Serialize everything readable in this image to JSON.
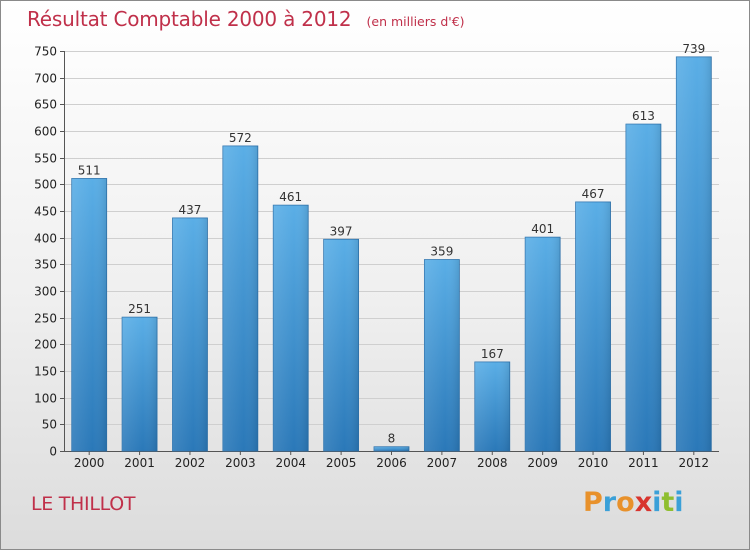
{
  "header": {
    "title": "Résultat Comptable 2000 à 2012",
    "unit": "(en milliers d'€)"
  },
  "footer": {
    "commune": "LE THILLOT",
    "brand_letters": [
      "P",
      "r",
      "o",
      "x",
      "i",
      "t",
      "i"
    ],
    "brand_colors": [
      "#e8912b",
      "#3aa0d8",
      "#e8912b",
      "#d8342e",
      "#3aa0d8",
      "#8fbe2f",
      "#3aa0d8"
    ]
  },
  "colors": {
    "title": "#c0304a",
    "bar_top": "#5aaee6",
    "bar_bottom": "#2a78b8",
    "grid": "#cfcfcf"
  },
  "chart_data": {
    "type": "bar",
    "title": "Résultat Comptable 2000 à 2012",
    "subtitle": "(en milliers d'€)",
    "xlabel": "",
    "ylabel": "",
    "categories": [
      "2000",
      "2001",
      "2002",
      "2003",
      "2004",
      "2005",
      "2006",
      "2007",
      "2008",
      "2009",
      "2010",
      "2011",
      "2012"
    ],
    "values": [
      511,
      251,
      437,
      572,
      461,
      397,
      8,
      359,
      167,
      401,
      467,
      613,
      739
    ],
    "ylim": [
      0,
      750
    ],
    "yticks": [
      0,
      50,
      100,
      150,
      200,
      250,
      300,
      350,
      400,
      450,
      500,
      550,
      600,
      650,
      700,
      750
    ],
    "grid": true,
    "legend": "none"
  }
}
